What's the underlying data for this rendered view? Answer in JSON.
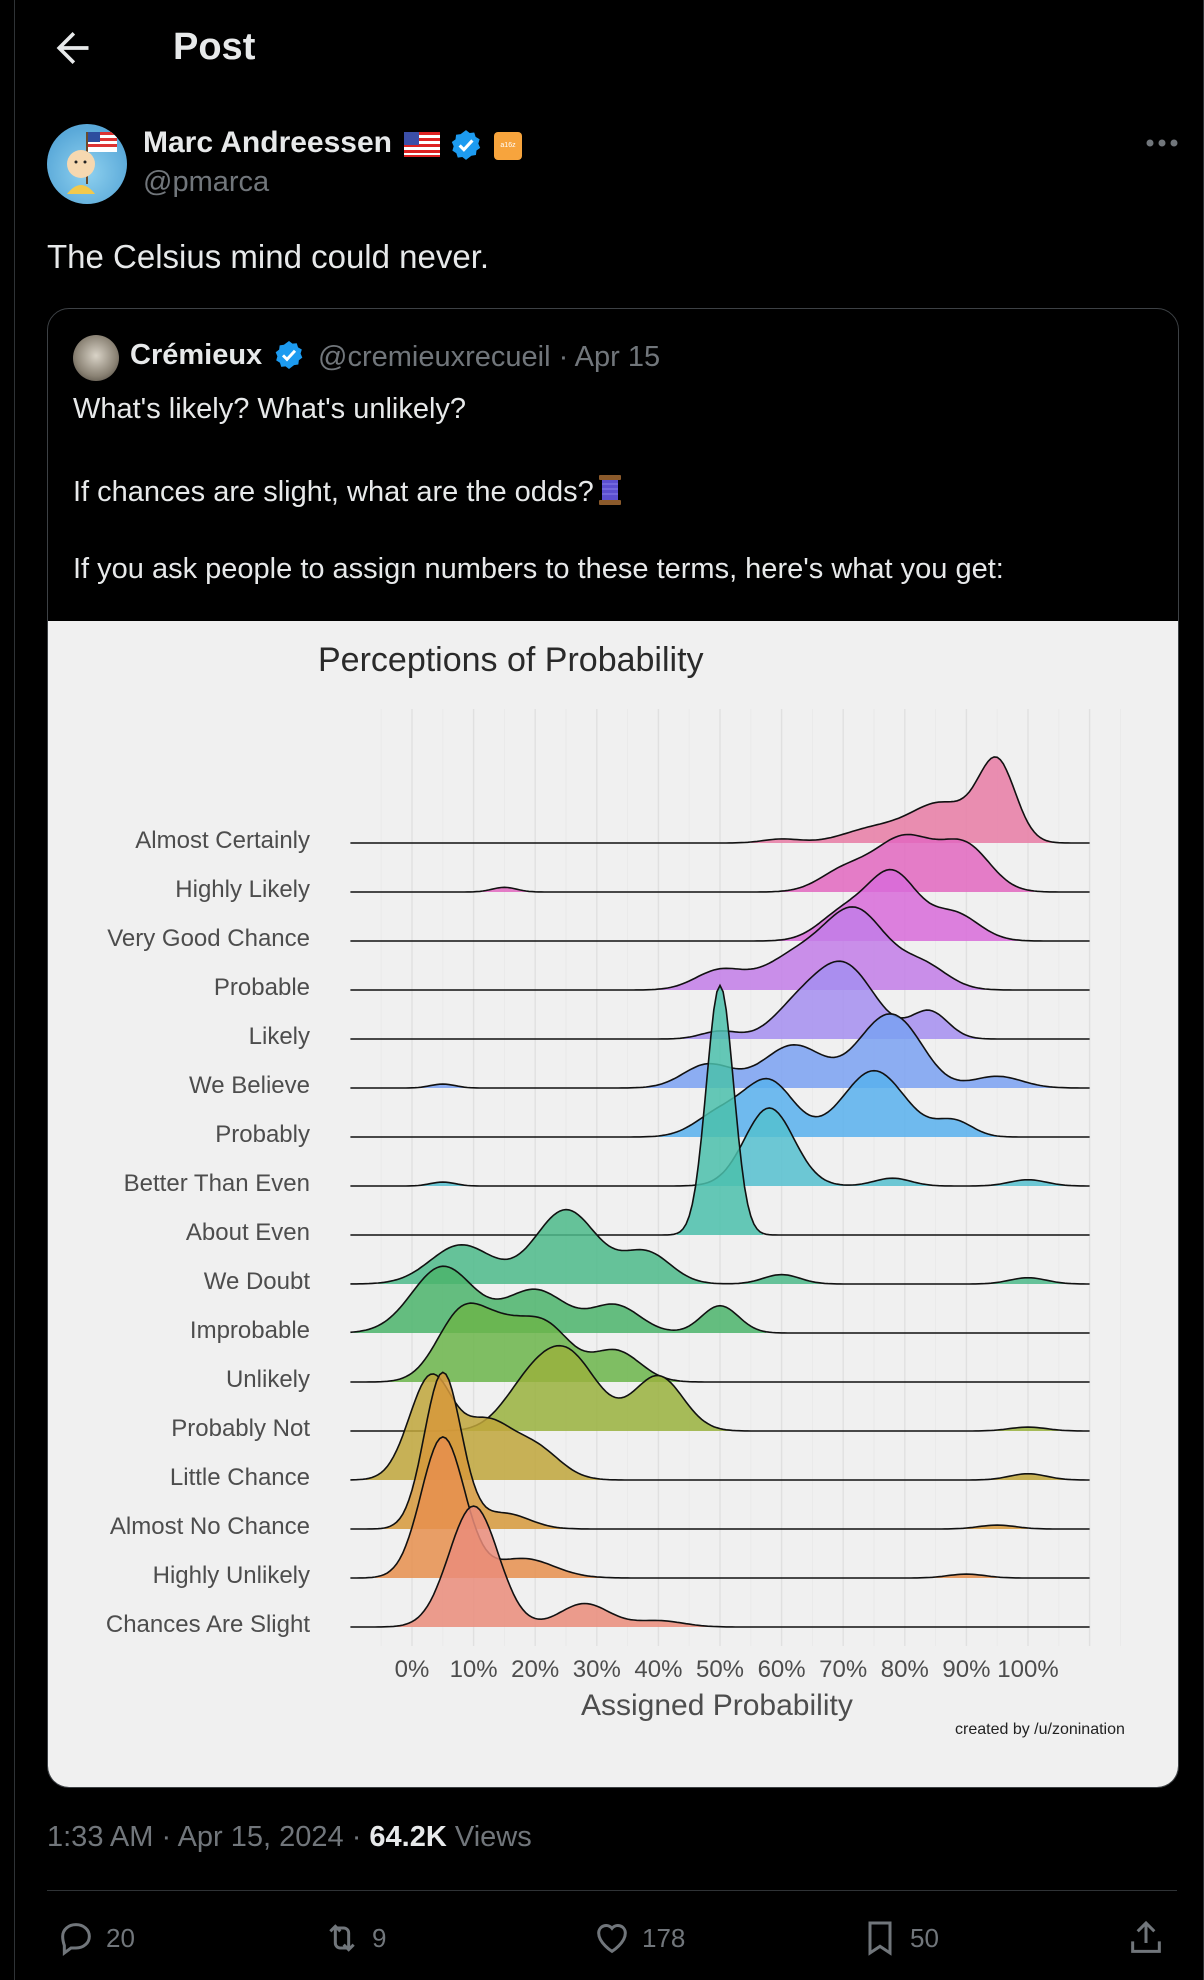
{
  "header": {
    "title": "Post",
    "back_icon": "arrow-left-icon"
  },
  "author": {
    "name": "Marc Andreessen",
    "handle": "@pmarca",
    "affiliation_badge": "a16z",
    "verified_color": "#1d9bf0"
  },
  "tweet": {
    "text": "The Celsius mind could never."
  },
  "quote": {
    "name": "Crémieux",
    "handle_date": "@cremieuxrecueil · Apr 15",
    "line1": "What's likely? What's unlikely?",
    "line2": "If chances are slight, what are the odds?",
    "line3": "If you ask people to assign numbers to these terms, here's what you get:"
  },
  "chart_data": {
    "type": "ridgeline",
    "title": "Perceptions of Probability",
    "xlabel": "Assigned Probability",
    "ylabel": "",
    "xlim": [
      0,
      100
    ],
    "xtick_labels": [
      "0%",
      "10%",
      "20%",
      "30%",
      "40%",
      "50%",
      "60%",
      "70%",
      "80%",
      "90%",
      "100%"
    ],
    "credit": "created by /u/zonination",
    "grid": true,
    "series": [
      {
        "name": "Almost Certainly",
        "color": "#e87ba4",
        "peaks": [
          [
            60,
            0.05,
            3
          ],
          [
            75,
            0.18,
            5
          ],
          [
            86,
            0.5,
            5
          ],
          [
            95,
            1.0,
            3
          ]
        ]
      },
      {
        "name": "Highly Likely",
        "color": "#e267c0",
        "peaks": [
          [
            15,
            0.06,
            2
          ],
          [
            70,
            0.25,
            4
          ],
          [
            80,
            0.7,
            5
          ],
          [
            90,
            0.55,
            4
          ]
        ]
      },
      {
        "name": "Very Good Chance",
        "color": "#d86bd9",
        "peaks": [
          [
            70,
            0.35,
            4
          ],
          [
            78,
            0.85,
            4
          ],
          [
            88,
            0.35,
            4
          ]
        ]
      },
      {
        "name": "Probable",
        "color": "#c27ce8",
        "peaks": [
          [
            50,
            0.25,
            4
          ],
          [
            62,
            0.4,
            5
          ],
          [
            72,
            1.0,
            5
          ],
          [
            83,
            0.3,
            4
          ]
        ]
      },
      {
        "name": "Likely",
        "color": "#a58ef0",
        "peaks": [
          [
            50,
            0.1,
            3
          ],
          [
            62,
            0.3,
            4
          ],
          [
            70,
            0.95,
            5
          ],
          [
            84,
            0.35,
            3
          ]
        ]
      },
      {
        "name": "We Believe",
        "color": "#7aa1f2",
        "peaks": [
          [
            5,
            0.05,
            2
          ],
          [
            48,
            0.3,
            4
          ],
          [
            62,
            0.55,
            5
          ],
          [
            75,
            0.55,
            4
          ],
          [
            80,
            0.6,
            4
          ],
          [
            95,
            0.15,
            4
          ]
        ]
      },
      {
        "name": "Probably",
        "color": "#58b0ed",
        "peaks": [
          [
            50,
            0.3,
            4
          ],
          [
            58,
            0.7,
            4
          ],
          [
            75,
            0.85,
            5
          ],
          [
            88,
            0.2,
            3
          ]
        ]
      },
      {
        "name": "Better Than Even",
        "color": "#55bfcf",
        "peaks": [
          [
            5,
            0.05,
            2
          ],
          [
            58,
            1.0,
            4
          ],
          [
            78,
            0.1,
            3
          ],
          [
            100,
            0.08,
            3
          ]
        ]
      },
      {
        "name": "About Even",
        "color": "#4bbfab",
        "peaks": [
          [
            50,
            3.2,
            2.2
          ]
        ]
      },
      {
        "name": "We Doubt",
        "color": "#4cba8a",
        "peaks": [
          [
            8,
            0.5,
            5
          ],
          [
            25,
            0.95,
            5
          ],
          [
            38,
            0.4,
            4
          ],
          [
            60,
            0.12,
            3
          ],
          [
            100,
            0.08,
            3
          ]
        ]
      },
      {
        "name": "Improbable",
        "color": "#4bb46b",
        "peaks": [
          [
            5,
            0.85,
            5
          ],
          [
            20,
            0.55,
            5
          ],
          [
            33,
            0.35,
            4
          ],
          [
            50,
            0.35,
            3
          ]
        ]
      },
      {
        "name": "Unlikely",
        "color": "#6bb54a",
        "peaks": [
          [
            8,
            0.85,
            4
          ],
          [
            15,
            0.55,
            4
          ],
          [
            22,
            0.65,
            4
          ],
          [
            33,
            0.4,
            4
          ]
        ]
      },
      {
        "name": "Probably Not",
        "color": "#99b13d",
        "peaks": [
          [
            18,
            0.35,
            4
          ],
          [
            25,
            1.0,
            5
          ],
          [
            40,
            0.7,
            4
          ],
          [
            100,
            0.05,
            3
          ]
        ]
      },
      {
        "name": "Little Chance",
        "color": "#bfa63b",
        "peaks": [
          [
            3,
            1.3,
            3.5
          ],
          [
            12,
            0.7,
            4
          ],
          [
            20,
            0.4,
            4
          ],
          [
            100,
            0.08,
            3
          ]
        ]
      },
      {
        "name": "Almost No Chance",
        "color": "#d6993b",
        "peaks": [
          [
            5,
            2.0,
            3
          ],
          [
            15,
            0.2,
            4
          ],
          [
            95,
            0.05,
            3
          ]
        ]
      },
      {
        "name": "Highly Unlikely",
        "color": "#e68f4e",
        "peaks": [
          [
            5,
            1.8,
            3.5
          ],
          [
            18,
            0.25,
            5
          ],
          [
            90,
            0.05,
            3
          ]
        ]
      },
      {
        "name": "Chances Are Slight",
        "color": "#ea8c7a",
        "peaks": [
          [
            10,
            1.55,
            4
          ],
          [
            28,
            0.3,
            4
          ],
          [
            40,
            0.08,
            4
          ]
        ]
      }
    ]
  },
  "footer": {
    "time": "1:33 AM · Apr 15, 2024 · ",
    "views_count": "64.2K",
    "views_label": " Views",
    "replies": "20",
    "reposts": "9",
    "likes": "178",
    "bookmarks": "50"
  }
}
